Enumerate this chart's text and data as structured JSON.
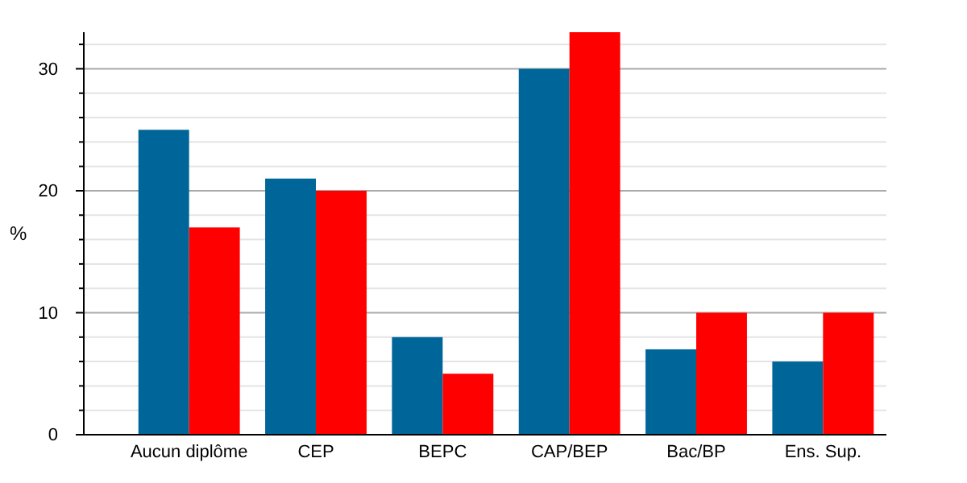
{
  "chart_data": {
    "type": "bar",
    "ylabel": "%",
    "categories": [
      "Aucun diplôme",
      "CEP",
      "BEPC",
      "CAP/BEP",
      "Bac/BP",
      "Ens. Sup."
    ],
    "series": [
      {
        "color": "#006699",
        "values": [
          25,
          21,
          8,
          30,
          7,
          6
        ]
      },
      {
        "color": "#ff0000",
        "values": [
          17,
          20,
          5,
          33,
          10,
          10
        ]
      }
    ],
    "ylim": [
      0,
      33
    ],
    "yticks": [
      0,
      {
        "value": 2,
        "label": null
      },
      {
        "value": 4,
        "label": null
      },
      {
        "value": 6,
        "label": null
      },
      {
        "value": 8,
        "label": null
      },
      10,
      {
        "value": 12,
        "label": null
      },
      {
        "value": 14,
        "label": null
      },
      {
        "value": 16,
        "label": null
      },
      {
        "value": 18,
        "label": null
      },
      20,
      {
        "value": 22,
        "label": null
      },
      {
        "value": 24,
        "label": null
      },
      {
        "value": 26,
        "label": null
      },
      {
        "value": 28,
        "label": null
      },
      30,
      {
        "value": 32,
        "label": null
      }
    ],
    "grid": true
  }
}
